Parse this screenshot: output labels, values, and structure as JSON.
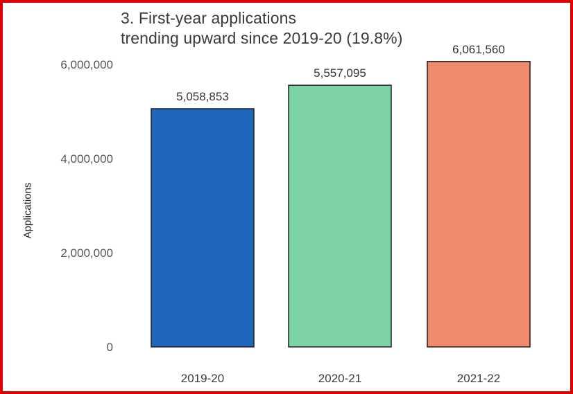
{
  "chart_data": {
    "type": "bar",
    "title": "3. First-year applications",
    "subtitle": "trending upward since 2019-20 (19.8%)",
    "xlabel": "",
    "ylabel": "Applications",
    "categories": [
      "2019-20",
      "2020-21",
      "2021-22"
    ],
    "values": [
      5058853,
      5557095,
      6061560
    ],
    "value_labels": [
      "5,058,853",
      "5,557,095",
      "6,061,560"
    ],
    "colors": [
      "#1f66bd",
      "#7ed3a4",
      "#f08a6c"
    ],
    "ylim": [
      0,
      6000000
    ],
    "yticks": [
      0,
      2000000,
      4000000,
      6000000
    ],
    "ytick_labels": [
      "0",
      "2,000,000",
      "4,000,000",
      "6,000,000"
    ],
    "grid": false,
    "legend": "none"
  }
}
